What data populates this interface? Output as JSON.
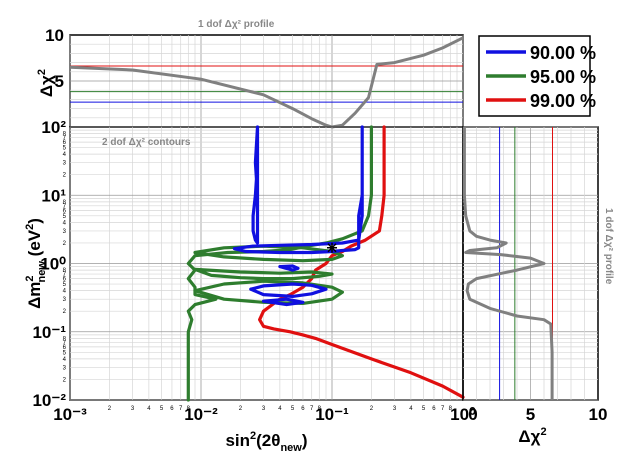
{
  "chart_data": [
    {
      "panel": "top",
      "type": "line",
      "title": "1 dof Δχ² profile",
      "xlabel": "",
      "ylabel": "Δχ²",
      "xscale": "log",
      "xlim": [
        0.001,
        1
      ],
      "ylim": [
        0,
        10
      ],
      "y_ticks": [
        "5",
        "10"
      ],
      "grid": true,
      "legend": {
        "placement": "top-right",
        "entries": [
          {
            "label": "90.00 %",
            "color": "#1010e0"
          },
          {
            "label": "95.00 %",
            "color": "#2e7d2e"
          },
          {
            "label": "99.00 %",
            "color": "#e01010"
          }
        ]
      },
      "series": [
        {
          "color": "#808080",
          "x": [
            0.001,
            0.003,
            0.01,
            0.03,
            0.05,
            0.07,
            0.09,
            0.1,
            0.12,
            0.15,
            0.19,
            0.22,
            0.3,
            0.5,
            0.7,
            1.0
          ],
          "y": [
            6.5,
            6.2,
            5.2,
            3.5,
            2.0,
            0.9,
            0.2,
            0.0,
            0.2,
            1.5,
            3.2,
            6.8,
            7.0,
            7.8,
            8.6,
            9.7
          ]
        }
      ],
      "hlines": [
        {
          "y": 2.71,
          "color": "#1010e0"
        },
        {
          "y": 3.84,
          "color": "#2e7d2e"
        },
        {
          "y": 6.63,
          "color": "#e01010"
        }
      ]
    },
    {
      "panel": "main",
      "type": "line",
      "title": "2 dof Δχ² contours",
      "xlabel": "sin²(2θnew)",
      "ylabel": "Δm²new (eV²)",
      "xscale": "log",
      "yscale": "log",
      "xlim": [
        0.001,
        1
      ],
      "ylim": [
        0.01,
        100
      ],
      "x_ticks": [
        "10⁻³",
        "10⁻²",
        "10⁻¹",
        "10⁰"
      ],
      "y_ticks": [
        "10⁻²",
        "10⁻¹",
        "10⁰",
        "10¹",
        "10²"
      ],
      "x_minor_ticks": [
        "2",
        "3",
        "4",
        "5",
        "6",
        "7",
        "8"
      ],
      "y_minor_ticks": [
        "2",
        "3",
        "4",
        "5",
        "6",
        "7",
        "8"
      ],
      "grid": true,
      "best_fit_marker": {
        "x": 0.1,
        "y": 1.7
      },
      "series": [
        {
          "color": "#e01010",
          "contours": [
            {
              "x": [
                0.25,
                0.25,
                0.24,
                0.23,
                0.18,
                0.14,
                0.12,
                0.1,
                0.09,
                0.075,
                0.07,
                0.06,
                0.048,
                0.04,
                0.035,
                0.03,
                0.028,
                0.03,
                0.036,
                0.048,
                0.06,
                0.075,
                0.1,
                0.2,
                0.4,
                0.7,
                1.0
              ],
              "y": [
                100,
                10,
                5,
                3,
                2.2,
                1.8,
                1.5,
                1.3,
                1.0,
                0.8,
                0.6,
                0.45,
                0.35,
                0.3,
                0.25,
                0.2,
                0.15,
                0.12,
                0.11,
                0.1,
                0.09,
                0.08,
                0.065,
                0.04,
                0.025,
                0.016,
                0.011
              ]
            }
          ]
        },
        {
          "color": "#2e7d2e",
          "contours": [
            {
              "x": [
                0.2,
                0.2,
                0.19,
                0.17,
                0.12,
                0.09,
                0.065,
                0.048,
                0.03,
                0.016,
                0.009,
                0.008,
                0.009,
                0.008,
                0.009,
                0.009,
                0.013,
                0.009,
                0.008,
                0.0085,
                0.008,
                0.008,
                0.008
              ],
              "y": [
                100,
                10,
                5,
                3,
                2.3,
                2.0,
                1.8,
                1.6,
                1.5,
                1.45,
                1.3,
                1.0,
                0.8,
                0.6,
                0.45,
                0.35,
                0.3,
                0.25,
                0.2,
                0.15,
                0.1,
                0.03,
                0.01
              ]
            },
            {
              "x": [
                0.009,
                0.02,
                0.04,
                0.07,
                0.1,
                0.08,
                0.05,
                0.03,
                0.02,
                0.012,
                0.009
              ],
              "y": [
                0.82,
                0.75,
                0.72,
                0.75,
                0.7,
                0.65,
                0.6,
                0.6,
                0.62,
                0.67,
                0.82
              ]
            },
            {
              "x": [
                0.009,
                0.015,
                0.03,
                0.06,
                0.1,
                0.12,
                0.1,
                0.06,
                0.03,
                0.015,
                0.009
              ],
              "y": [
                0.4,
                0.5,
                0.55,
                0.52,
                0.45,
                0.38,
                0.3,
                0.26,
                0.27,
                0.3,
                0.4
              ]
            },
            {
              "x": [
                0.009,
                0.015,
                0.03,
                0.06,
                0.1,
                0.12,
                0.1,
                0.06,
                0.03,
                0.015,
                0.009
              ],
              "y": [
                1.45,
                1.7,
                1.8,
                1.7,
                1.5,
                1.3,
                1.15,
                1.1,
                1.15,
                1.25,
                1.45
              ]
            }
          ]
        },
        {
          "color": "#1010e0",
          "contours": [
            {
              "x": [
                0.17,
                0.17,
                0.16,
                0.16,
                0.12,
                0.07,
                0.04,
                0.025,
                0.018,
                0.022,
                0.04,
                0.07,
                0.1,
                0.12,
                0.15,
                0.16,
                0.16,
                0.17,
                0.17
              ],
              "y": [
                100,
                10,
                5,
                2.2,
                2.0,
                1.9,
                1.85,
                1.8,
                1.65,
                1.5,
                1.45,
                1.45,
                1.5,
                1.55,
                1.6,
                1.7,
                2.2,
                5,
                10
              ]
            },
            {
              "x": [
                0.027,
                0.027,
                0.026,
                0.025,
                0.025,
                0.026,
                0.027,
                0.027,
                0.026,
                0.027
              ],
              "y": [
                100,
                30,
                10,
                5,
                3,
                2.2,
                2.0,
                100,
                30,
                10
              ]
            },
            {
              "x": [
                0.024,
                0.03,
                0.05,
                0.07,
                0.09,
                0.07,
                0.05,
                0.03,
                0.024
              ],
              "y": [
                0.42,
                0.47,
                0.5,
                0.48,
                0.42,
                0.36,
                0.33,
                0.35,
                0.42
              ]
            },
            {
              "x": [
                0.03,
                0.045,
                0.06,
                0.045,
                0.03
              ],
              "y": [
                0.28,
                0.3,
                0.27,
                0.25,
                0.28
              ]
            },
            {
              "x": [
                0.04,
                0.05,
                0.055,
                0.05,
                0.04
              ],
              "y": [
                0.9,
                0.92,
                0.85,
                0.8,
                0.9
              ]
            }
          ]
        }
      ]
    },
    {
      "panel": "right",
      "type": "line",
      "title": "1 dof Δχ² profile",
      "xlabel": "Δχ²",
      "ylabel": "",
      "yscale": "log",
      "xlim": [
        0,
        10
      ],
      "ylim": [
        0.01,
        100
      ],
      "x_ticks": [
        "0",
        "5",
        "10"
      ],
      "grid": true,
      "series": [
        {
          "color": "#808080",
          "x": [
            0.1,
            0.1,
            0.1,
            0.2,
            0.5,
            1.0,
            2.0,
            3.2,
            2.5,
            0.5,
            0.2,
            2.8,
            5.0,
            6.0,
            4.0,
            1.0,
            0.4,
            0.3,
            0.5,
            2.0,
            4.0,
            6.0,
            6.5,
            6.6,
            6.6
          ],
          "y": [
            100,
            30,
            10,
            5,
            3,
            2.5,
            2.2,
            2.0,
            1.7,
            1.55,
            1.45,
            1.35,
            1.2,
            1.0,
            0.8,
            0.6,
            0.5,
            0.4,
            0.3,
            0.22,
            0.17,
            0.15,
            0.13,
            0.05,
            0.01
          ]
        }
      ],
      "vlines": [
        {
          "x": 2.71,
          "color": "#1010e0"
        },
        {
          "x": 3.84,
          "color": "#2e7d2e"
        },
        {
          "x": 6.63,
          "color": "#e01010"
        }
      ]
    }
  ]
}
